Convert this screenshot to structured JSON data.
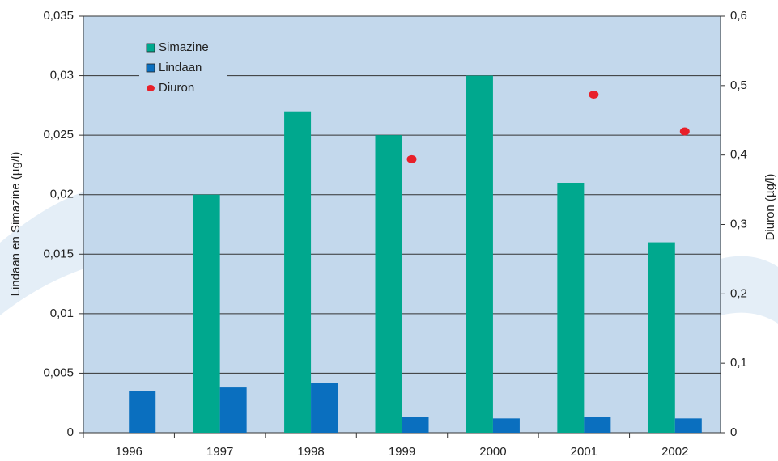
{
  "chart_data": {
    "type": "bar",
    "categories": [
      "1996",
      "1997",
      "1998",
      "1999",
      "2000",
      "2001",
      "2002"
    ],
    "series": [
      {
        "name": "Simazine",
        "type": "bar",
        "color": "#00a88e",
        "values": [
          null,
          0.02,
          0.027,
          0.025,
          0.03,
          0.021,
          0.016
        ]
      },
      {
        "name": "Lindaan",
        "type": "bar",
        "color": "#0a6fbf",
        "values": [
          0.0035,
          0.0038,
          0.0042,
          0.0013,
          0.0012,
          0.0013,
          0.0012
        ]
      },
      {
        "name": "Diuron",
        "type": "scatter",
        "axis": "y2",
        "color": "#e8202a",
        "values": [
          null,
          null,
          null,
          0.394,
          null,
          0.487,
          0.434
        ]
      }
    ],
    "ylabel": "Lindaan en Simazine  (µg/l)",
    "y2label": "Diuron  (µg/l)",
    "ylim": [
      0,
      0.035
    ],
    "yticks": [
      0,
      {
        "value": 0.005,
        "label": "0,005"
      },
      {
        "value": 0.01,
        "label": "0,01"
      },
      {
        "value": 0.015,
        "label": "0,015"
      },
      {
        "value": 0.02,
        "label": "0,02"
      },
      {
        "value": 0.025,
        "label": "0,025"
      },
      {
        "value": 0.03,
        "label": "0,03"
      },
      {
        "value": 0.035,
        "label": "0,035"
      }
    ],
    "y2lim": [
      0,
      0.6
    ],
    "y2ticks": [
      0,
      {
        "value": 0.1,
        "label": "0,1"
      },
      {
        "value": 0.2,
        "label": "0,2"
      },
      {
        "value": 0.3,
        "label": "0,3"
      },
      {
        "value": 0.4,
        "label": "0,4"
      },
      {
        "value": 0.5,
        "label": "0,5"
      },
      {
        "value": 0.6,
        "label": "0,6"
      }
    ],
    "grid": true,
    "legend": "upper left"
  }
}
